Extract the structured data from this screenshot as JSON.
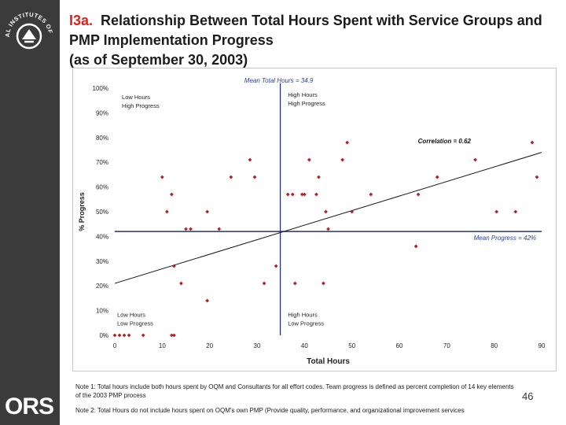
{
  "title": {
    "number": "I3a.",
    "text": "Relationship Between Total Hours Spent with Service Groups and PMP Implementation Progress",
    "subtitle": "(as of September 30, 2003)"
  },
  "logos": {
    "top": "NATIONAL INSTITUTES OF HEALTH",
    "bottom": "ORS"
  },
  "notes": {
    "note1": "Note 1: Total hours include both hours spent by OQM and Consultants for all effort codes. Team progress is defined as percent completion of 14 key elements of the 2003 PMP process",
    "note2": "Note 2: Total Hours do not include hours spent on OQM's own PMP (Provide quality, performance, and organizational improvement services"
  },
  "page_number": "46",
  "chart_data": {
    "type": "scatter",
    "xlabel": "Total Hours",
    "ylabel": "% Progress",
    "xlim": [
      0,
      90
    ],
    "ylim": [
      0,
      100
    ],
    "xticks": [
      "0",
      "10",
      "20",
      "30",
      "40",
      "50",
      "60",
      "70",
      "80",
      "90"
    ],
    "yticks": [
      "0%",
      "10%",
      "20%",
      "30%",
      "40%",
      "50%",
      "60%",
      "70%",
      "80%",
      "90%",
      "100%"
    ],
    "mean_hours": 34.9,
    "mean_hours_label": "Mean Total Hours = 34.9",
    "mean_progress": 42,
    "mean_progress_label": "Mean Progress = 42%",
    "correlation_label": "Correlation = 0.62",
    "trendline": {
      "x": [
        0,
        90
      ],
      "y": [
        21,
        74
      ]
    },
    "quadrants": {
      "top_left": [
        "Low Hours",
        "High Progress"
      ],
      "top_right": [
        "High Hours",
        "High Progress"
      ],
      "bottom_left": [
        "Low Hours",
        "Low Progress"
      ],
      "bottom_right": [
        "High Hours",
        "Low Progress"
      ]
    },
    "series_color": "#b22222",
    "points": [
      {
        "x": 0,
        "y": 0
      },
      {
        "x": 1,
        "y": 0
      },
      {
        "x": 2,
        "y": 0
      },
      {
        "x": 3,
        "y": 0
      },
      {
        "x": 6,
        "y": 0
      },
      {
        "x": 12,
        "y": 0
      },
      {
        "x": 12.5,
        "y": 0
      },
      {
        "x": 10,
        "y": 64
      },
      {
        "x": 11,
        "y": 50
      },
      {
        "x": 12,
        "y": 57
      },
      {
        "x": 12.5,
        "y": 28
      },
      {
        "x": 14,
        "y": 21
      },
      {
        "x": 15,
        "y": 43
      },
      {
        "x": 16,
        "y": 43
      },
      {
        "x": 19.5,
        "y": 50
      },
      {
        "x": 19.5,
        "y": 14
      },
      {
        "x": 22,
        "y": 43
      },
      {
        "x": 24.5,
        "y": 64
      },
      {
        "x": 28.5,
        "y": 71
      },
      {
        "x": 29.5,
        "y": 64
      },
      {
        "x": 31.5,
        "y": 21
      },
      {
        "x": 34,
        "y": 28
      },
      {
        "x": 36.5,
        "y": 57
      },
      {
        "x": 37.5,
        "y": 57
      },
      {
        "x": 38,
        "y": 21
      },
      {
        "x": 39.5,
        "y": 57
      },
      {
        "x": 40,
        "y": 57
      },
      {
        "x": 41,
        "y": 71
      },
      {
        "x": 42.5,
        "y": 57
      },
      {
        "x": 43,
        "y": 64
      },
      {
        "x": 44,
        "y": 21
      },
      {
        "x": 44.5,
        "y": 50
      },
      {
        "x": 45,
        "y": 43
      },
      {
        "x": 48,
        "y": 71
      },
      {
        "x": 49,
        "y": 78
      },
      {
        "x": 50,
        "y": 50
      },
      {
        "x": 54,
        "y": 57
      },
      {
        "x": 63.5,
        "y": 36
      },
      {
        "x": 64,
        "y": 57
      },
      {
        "x": 68,
        "y": 64
      },
      {
        "x": 76,
        "y": 71
      },
      {
        "x": 80.5,
        "y": 50
      },
      {
        "x": 84.5,
        "y": 50
      },
      {
        "x": 88,
        "y": 78
      },
      {
        "x": 89,
        "y": 64
      }
    ]
  }
}
